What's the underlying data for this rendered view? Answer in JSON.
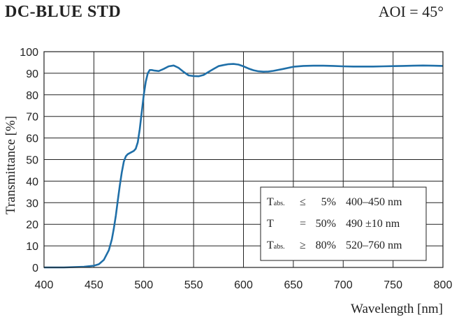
{
  "header": {
    "title": "DC-BLUE STD",
    "aoi": "AOI = 45°"
  },
  "chart_data": {
    "type": "line",
    "xlabel": "Wavelength [nm]",
    "ylabel": "Transmittance [%]",
    "xlim": [
      400,
      800
    ],
    "ylim": [
      0,
      100
    ],
    "xticks": [
      400,
      450,
      500,
      550,
      600,
      650,
      700,
      750,
      800
    ],
    "yticks": [
      0,
      10,
      20,
      30,
      40,
      50,
      60,
      70,
      80,
      90,
      100
    ],
    "grid": true,
    "line_color": "#1f6fa8",
    "series": [
      {
        "x": [
          400,
          420,
          440,
          450,
          455,
          460,
          465,
          468,
          470,
          472,
          474,
          476,
          478,
          480,
          482,
          484,
          486,
          488,
          490,
          492,
          494,
          496,
          498,
          500,
          502,
          504,
          506,
          508,
          510,
          515,
          520,
          525,
          530,
          535,
          540,
          545,
          550,
          555,
          560,
          565,
          570,
          575,
          580,
          585,
          590,
          595,
          600,
          605,
          610,
          615,
          620,
          625,
          630,
          640,
          650,
          660,
          670,
          680,
          690,
          700,
          710,
          720,
          730,
          740,
          750,
          760,
          770,
          780,
          790,
          800
        ],
        "y": [
          0,
          0,
          0.3,
          0.8,
          1.5,
          3.5,
          8,
          13,
          18,
          24,
          31,
          38,
          44,
          49,
          51.5,
          52.5,
          53,
          53.5,
          54,
          55,
          58,
          64,
          72,
          80,
          86,
          90,
          91.5,
          91.5,
          91.3,
          91,
          92,
          93.2,
          93.6,
          92.5,
          90.6,
          89,
          88.7,
          88.6,
          89.2,
          90.6,
          92,
          93.3,
          93.8,
          94.2,
          94.3,
          94,
          93.2,
          92.2,
          91.4,
          90.9,
          90.7,
          90.8,
          91.1,
          92,
          93,
          93.4,
          93.5,
          93.5,
          93.4,
          93.2,
          93.1,
          93.1,
          93.1,
          93.2,
          93.3,
          93.4,
          93.5,
          93.6,
          93.5,
          93.4
        ]
      }
    ],
    "specs": [
      {
        "sym": "T",
        "sub": "abs.",
        "op": "≤",
        "val": "5%",
        "range": "400–450 nm"
      },
      {
        "sym": "T",
        "sub": "",
        "op": "=",
        "val": "50%",
        "range": "490  ±10 nm"
      },
      {
        "sym": "T",
        "sub": "abs.",
        "op": "≥",
        "val": "80%",
        "range": "520–760 nm"
      }
    ]
  }
}
